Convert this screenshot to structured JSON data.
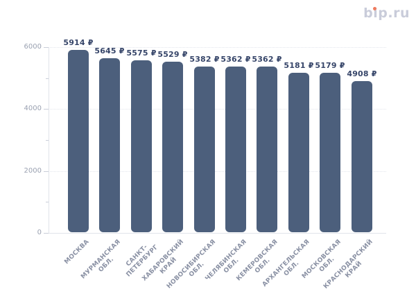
{
  "logo": {
    "text": "bip.ru"
  },
  "chart_data": {
    "type": "bar",
    "title": "",
    "categories": [
      "МОСКВА",
      "МУРМАНСКАЯ ОБЛ.",
      "САНКТ-ПЕТЕРБУРГ",
      "ХАБАРОВСКИЙ КРАЙ",
      "НОВОСИБИРСКАЯ ОБЛ.",
      "ЧЕЛЯБИНСКАЯ ОБЛ.",
      "КЕМЕРОВСКАЯ ОБЛ.",
      "АРХАНГЕЛЬСКАЯ ОБЛ.",
      "МОСКОВСКАЯ ОБЛ.",
      "КРАСНОДАРСКИЙ КРАЙ"
    ],
    "categories_display": [
      "МОСКВА",
      "МУРМАНСКАЯ\nОБЛ.",
      "САНКТ-\nПЕТЕРБУРГ",
      "ХАБАРОВСКИЙ\nКРАЙ",
      "НОВОСИБИРСКАЯ\nОБЛ.",
      "ЧЕЛЯБИНСКАЯ\nОБЛ.",
      "КЕМЕРОВСКАЯ\nОБЛ.",
      "АРХАНГЕЛЬСКАЯ\nОБЛ.",
      "МОСКОВСКАЯ\nОБЛ.",
      "КРАСНОДАРСКИЙ\nКРАЙ"
    ],
    "values": [
      5914,
      5645,
      5575,
      5529,
      5382,
      5362,
      5362,
      5181,
      5179,
      4908
    ],
    "value_labels": [
      "5914 ₽",
      "5645 ₽",
      "5575 ₽",
      "5529 ₽",
      "5382 ₽",
      "5362 ₽",
      "5362 ₽",
      "5181 ₽",
      "5179 ₽",
      "4908 ₽"
    ],
    "currency_unit": "₽",
    "xlabel": "",
    "ylabel": "",
    "ylim": [
      0,
      6000
    ],
    "ytick_labels": [
      "0",
      "2000",
      "4000",
      "6000"
    ],
    "ytick_values": [
      0,
      2000,
      4000,
      6000
    ],
    "minor_ytick_values": [
      1000,
      3000,
      5000
    ],
    "grid": "horizontal dotted lines at major ticks",
    "legend": "none"
  },
  "colors": {
    "bar": "#4c5f7c",
    "value_label": "#364569",
    "axis_label": "#9aa1b1",
    "category_label": "#8a91a4",
    "grid_line": "#e2e5ec",
    "axis_line": "#e0e3ea",
    "tick": "#c9cdd8",
    "logo_text": "#c9ccda",
    "logo_dot": "#ef7a5e",
    "background": "#ffffff"
  }
}
